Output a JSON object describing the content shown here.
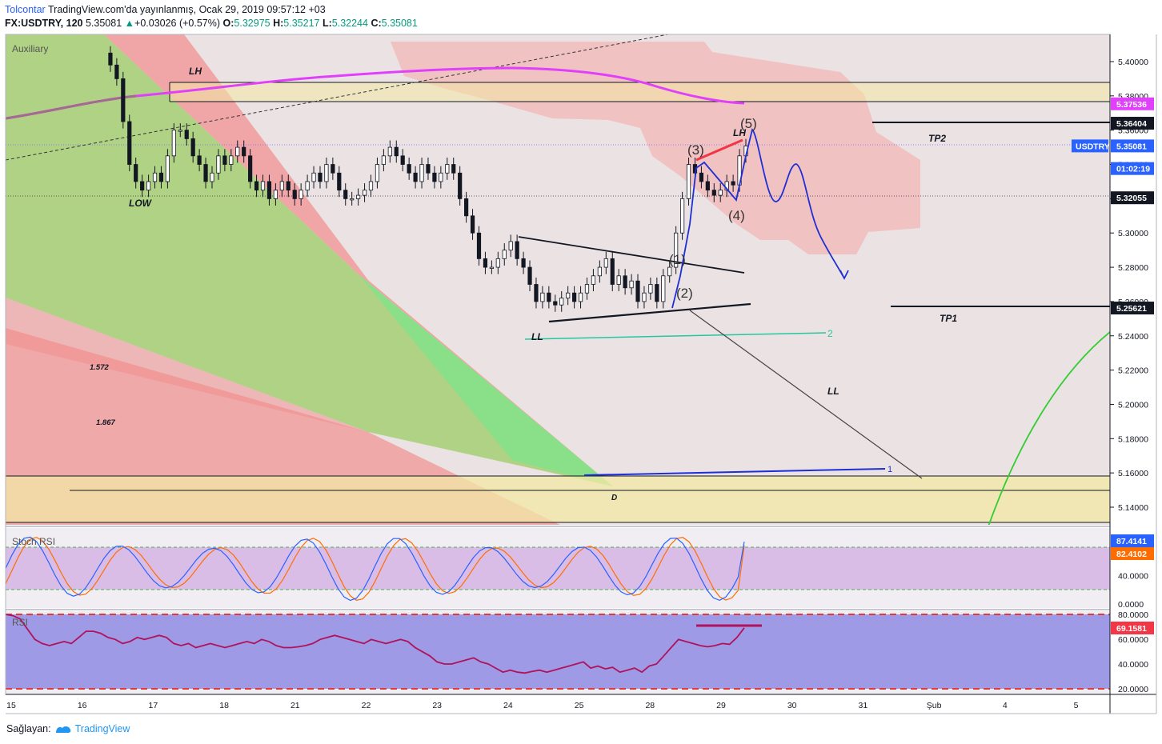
{
  "header": {
    "author": "Tolcontar",
    "published": "TradingView.com'da yayınlanmış, Ocak 29, 2019 09:57:12 +03",
    "symbol": "FX:USDTRY, 120",
    "last": "5.35081",
    "change": "+0.03026 (+0.57%)",
    "o_label": "O:",
    "o": "5.32975",
    "h_label": "H:",
    "h": "5.35217",
    "l_label": "L:",
    "l": "5.32244",
    "c_label": "C:",
    "c": "5.35081"
  },
  "footer": {
    "label": "Sağlayan:",
    "brand": "TradingView",
    "logo_icon": "tradingview-logo-icon"
  },
  "panes": {
    "main_label": "Auxiliary",
    "stoch_label": "Stoch RSI",
    "rsi_label": "RSI"
  },
  "annotations": {
    "lh1": "LH",
    "low": "LOW",
    "lh2": "LH",
    "ll1": "LL",
    "ll2": "LL",
    "tp1": "TP1",
    "tp2": "TP2",
    "d": "D",
    "fib1": "1.572",
    "fib2": "1.867",
    "w1": "(1)",
    "w2": "(2)",
    "w3": "(3)",
    "w4": "(4)",
    "w5": "(5)",
    "line1": "1",
    "line2": "2"
  },
  "price_axis": {
    "ticks": [
      "5.40000",
      "5.38000",
      "5.36000",
      "5.34000",
      "5.32000",
      "5.30000",
      "5.28000",
      "5.26000",
      "5.24000",
      "5.22000",
      "5.20000",
      "5.18000",
      "5.16000",
      "5.14000"
    ],
    "badges": [
      {
        "text": "5.37536",
        "bg": "#e040fb",
        "fg": "#ffffff",
        "price": 5.37536
      },
      {
        "text": "5.36404",
        "bg": "#131722",
        "fg": "#ffffff",
        "price": 5.36404
      },
      {
        "text": "5.35081",
        "bg": "#2962ff",
        "fg": "#ffffff",
        "price": 5.35081
      },
      {
        "text": "01:02:19",
        "bg": "#2962ff",
        "fg": "#ffffff",
        "price": 5.3376
      },
      {
        "text": "5.32055",
        "bg": "#131722",
        "fg": "#ffffff",
        "price": 5.32055
      },
      {
        "text": "5.25621",
        "bg": "#131722",
        "fg": "#ffffff",
        "price": 5.25621
      }
    ],
    "symbol_tag": "USDTRY"
  },
  "stoch_axis": {
    "ticks": [
      "80.0000",
      "40.0000",
      "0.0000"
    ],
    "badges": [
      {
        "text": "87.4141",
        "bg": "#2962ff"
      },
      {
        "text": "82.4102",
        "bg": "#ff6d00"
      }
    ]
  },
  "rsi_axis": {
    "ticks": [
      "80.0000",
      "60.0000",
      "40.0000",
      "20.0000"
    ],
    "badges": [
      {
        "text": "69.1581",
        "bg": "#f23645"
      }
    ]
  },
  "time_axis": [
    "15",
    "16",
    "17",
    "18",
    "21",
    "22",
    "23",
    "24",
    "25",
    "28",
    "29",
    "30",
    "31",
    "Şub",
    "4",
    "5"
  ],
  "chart_data": {
    "type": "candlestick",
    "symbol": "FX:USDTRY",
    "interval": "120",
    "ylim": [
      5.13,
      5.41
    ],
    "close_sequence": [
      5.405,
      5.398,
      5.39,
      5.365,
      5.34,
      5.33,
      5.325,
      5.33,
      5.335,
      5.33,
      5.345,
      5.36,
      5.36,
      5.355,
      5.345,
      5.34,
      5.33,
      5.335,
      5.345,
      5.34,
      5.345,
      5.35,
      5.345,
      5.33,
      5.325,
      5.33,
      5.32,
      5.325,
      5.33,
      5.325,
      5.32,
      5.325,
      5.33,
      5.335,
      5.33,
      5.34,
      5.335,
      5.325,
      5.32,
      5.32,
      5.322,
      5.325,
      5.33,
      5.34,
      5.345,
      5.35,
      5.345,
      5.34,
      5.335,
      5.33,
      5.34,
      5.335,
      5.33,
      5.335,
      5.34,
      5.335,
      5.32,
      5.31,
      5.3,
      5.285,
      5.28,
      5.28,
      5.285,
      5.29,
      5.295,
      5.285,
      5.28,
      5.27,
      5.26,
      5.265,
      5.26,
      5.258,
      5.262,
      5.265,
      5.26,
      5.265,
      5.27,
      5.275,
      5.28,
      5.285,
      5.27,
      5.275,
      5.268,
      5.272,
      5.26,
      5.265,
      5.27,
      5.26,
      5.275,
      5.28,
      5.3,
      5.32,
      5.34,
      5.335,
      5.33,
      5.325,
      5.322,
      5.325,
      5.33,
      5.328,
      5.345,
      5.35081
    ],
    "levels": {
      "tp1": 5.25621,
      "tp2": 5.36404,
      "support": 5.32055
    },
    "stoch_rsi": {
      "k_last": 87.4141,
      "d_last": 82.4102,
      "bands": [
        80,
        20
      ]
    },
    "rsi": {
      "last": 69.1581,
      "bands": [
        80,
        20
      ]
    }
  }
}
